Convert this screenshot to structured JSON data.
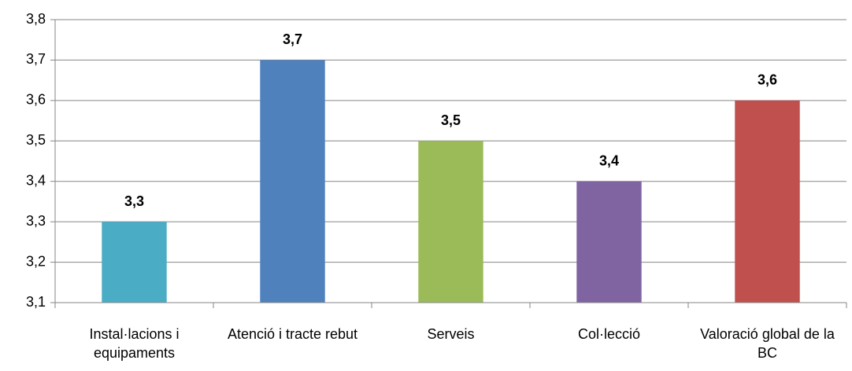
{
  "chart_data": {
    "type": "bar",
    "categories": [
      "Instal·lacions i equipaments",
      "Atenció i tracte rebut",
      "Serveis",
      "Col·lecció",
      "Valoració global de la BC"
    ],
    "values": [
      3.3,
      3.7,
      3.5,
      3.4,
      3.6
    ],
    "value_labels": [
      "3,3",
      "3,7",
      "3,5",
      "3,4",
      "3,6"
    ],
    "colors": [
      "#4bacc6",
      "#4f81bd",
      "#9bbb59",
      "#8064a2",
      "#c0504d"
    ],
    "ylim": [
      3.1,
      3.8
    ],
    "yticks": [
      {
        "value": 3.1,
        "label": "3,1"
      },
      {
        "value": 3.2,
        "label": "3,2"
      },
      {
        "value": 3.3,
        "label": "3,3"
      },
      {
        "value": 3.4,
        "label": "3,4"
      },
      {
        "value": 3.5,
        "label": "3,5"
      },
      {
        "value": 3.6,
        "label": "3,6"
      },
      {
        "value": 3.7,
        "label": "3,7"
      },
      {
        "value": 3.8,
        "label": "3,8"
      }
    ],
    "grid": true
  }
}
